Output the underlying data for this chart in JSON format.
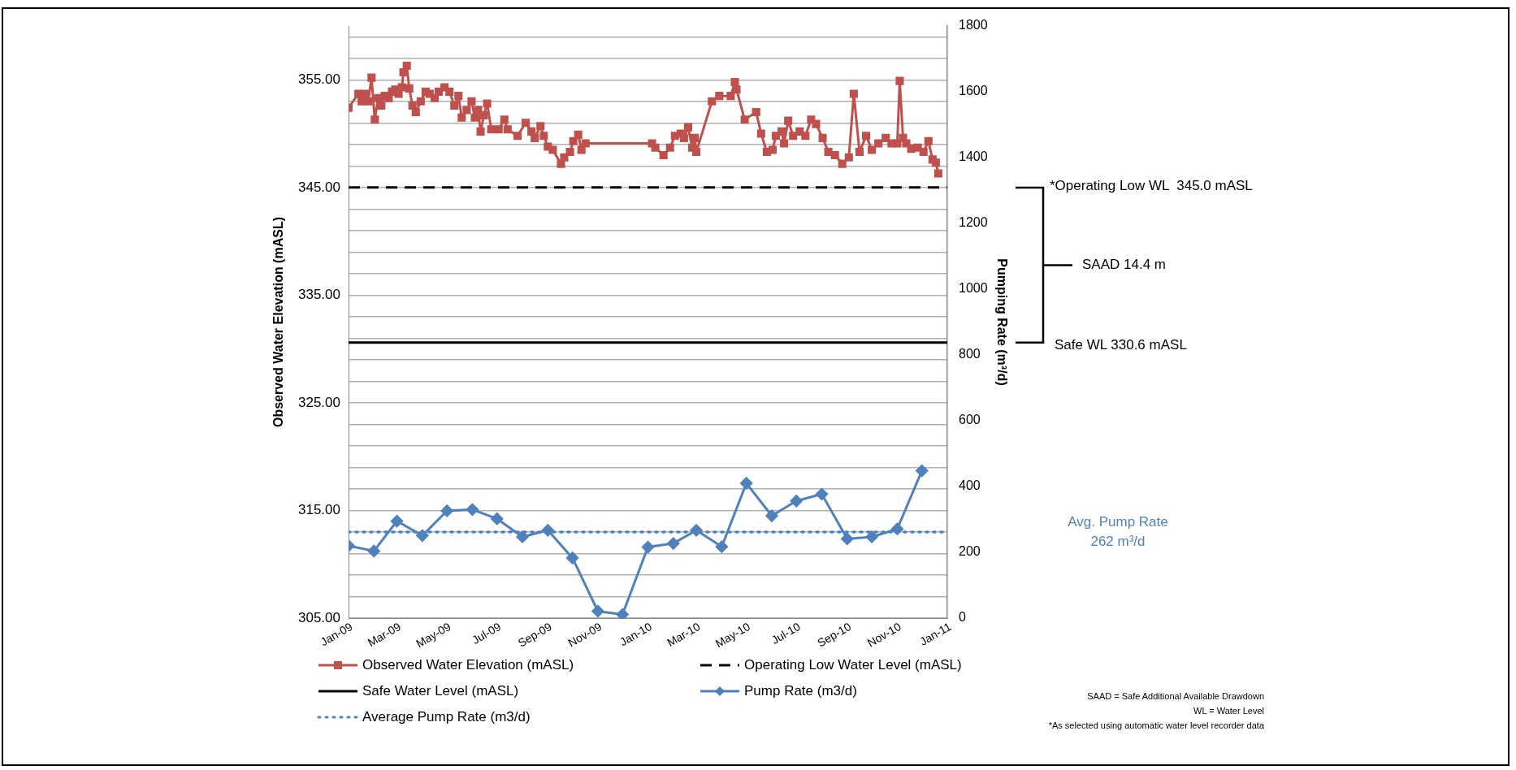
{
  "chart_data": {
    "type": "line",
    "xlabel": null,
    "ylabel": "Observed Water Elevation (mASL)",
    "y2label": "Pumping Rate (m³/d)",
    "xlim": [
      "2009-01",
      "2011-01"
    ],
    "xticks": [
      {
        "value": "2009-01",
        "label": "Jan-09"
      },
      {
        "value": "2009-03",
        "label": "Mar-09"
      },
      {
        "value": "2009-05",
        "label": "May-09"
      },
      {
        "value": "2009-07",
        "label": "Jul-09"
      },
      {
        "value": "2009-09",
        "label": "Sep-09"
      },
      {
        "value": "2009-11",
        "label": "Nov-09"
      },
      {
        "value": "2010-01",
        "label": "Jan-10"
      },
      {
        "value": "2010-03",
        "label": "Mar-10"
      },
      {
        "value": "2010-05",
        "label": "May-10"
      },
      {
        "value": "2010-07",
        "label": "Jul-10"
      },
      {
        "value": "2010-09",
        "label": "Sep-10"
      },
      {
        "value": "2010-11",
        "label": "Nov-10"
      },
      {
        "value": "2011-01",
        "label": "Jan-11"
      }
    ],
    "ylim": [
      305,
      360
    ],
    "yticks": [
      {
        "value": 305,
        "label": "305.00"
      },
      {
        "value": 307,
        "label": null
      },
      {
        "value": 309,
        "label": null
      },
      {
        "value": 311,
        "label": null
      },
      {
        "value": 313,
        "label": null
      },
      {
        "value": 315,
        "label": "315.00"
      },
      {
        "value": 317,
        "label": null
      },
      {
        "value": 319,
        "label": null
      },
      {
        "value": 321,
        "label": null
      },
      {
        "value": 323,
        "label": null
      },
      {
        "value": 325,
        "label": "325.00"
      },
      {
        "value": 327,
        "label": null
      },
      {
        "value": 329,
        "label": null
      },
      {
        "value": 331,
        "label": null
      },
      {
        "value": 333,
        "label": null
      },
      {
        "value": 335,
        "label": "335.00"
      },
      {
        "value": 337,
        "label": null
      },
      {
        "value": 339,
        "label": null
      },
      {
        "value": 341,
        "label": null
      },
      {
        "value": 343,
        "label": null
      },
      {
        "value": 345,
        "label": "345.00"
      },
      {
        "value": 347,
        "label": null
      },
      {
        "value": 349,
        "label": null
      },
      {
        "value": 351,
        "label": null
      },
      {
        "value": 353,
        "label": null
      },
      {
        "value": 355,
        "label": "355.00"
      },
      {
        "value": 357,
        "label": null
      },
      {
        "value": 359,
        "label": null
      }
    ],
    "y2lim": [
      0,
      1800
    ],
    "y2ticks": [
      0,
      200,
      400,
      600,
      800,
      1000,
      1200,
      1400,
      1600,
      1800
    ],
    "grid": true,
    "legend": "bottom",
    "series": [
      {
        "name": "Observed Water Elevation (mASL)",
        "color": "#c0504d",
        "marker": "square",
        "line_style": "solid",
        "x": [
          "2009-01-01",
          "2009-01-13",
          "2009-01-17",
          "2009-01-21",
          "2009-01-25",
          "2009-01-29",
          "2009-02-02",
          "2009-02-06",
          "2009-02-10",
          "2009-02-14",
          "2009-02-19",
          "2009-02-23",
          "2009-02-27",
          "2009-03-03",
          "2009-03-07",
          "2009-03-09",
          "2009-03-13",
          "2009-03-16",
          "2009-03-20",
          "2009-03-24",
          "2009-03-30",
          "2009-04-05",
          "2009-04-10",
          "2009-04-16",
          "2009-04-21",
          "2009-04-28",
          "2009-05-04",
          "2009-05-10",
          "2009-05-15",
          "2009-05-19",
          "2009-05-25",
          "2009-05-31",
          "2009-06-04",
          "2009-06-08",
          "2009-06-11",
          "2009-06-15",
          "2009-06-19",
          "2009-06-24",
          "2009-07-03",
          "2009-07-10",
          "2009-07-14",
          "2009-07-26",
          "2009-08-05",
          "2009-08-12",
          "2009-08-16",
          "2009-08-23",
          "2009-08-27",
          "2009-09-01",
          "2009-09-07",
          "2009-09-17",
          "2009-09-21",
          "2009-09-28",
          "2009-10-02",
          "2009-10-08",
          "2009-10-12",
          "2009-10-17",
          "2010-01-06",
          "2010-01-10",
          "2010-01-20",
          "2010-01-28",
          "2010-02-03",
          "2010-02-10",
          "2010-02-14",
          "2010-02-19",
          "2010-02-24",
          "2010-02-27",
          "2010-03-01",
          "2010-03-20",
          "2010-03-29",
          "2010-04-12",
          "2010-04-17",
          "2010-04-19",
          "2010-04-29",
          "2010-05-13",
          "2010-05-19",
          "2010-05-26",
          "2010-06-02",
          "2010-06-06",
          "2010-06-13",
          "2010-06-16",
          "2010-06-21",
          "2010-06-27",
          "2010-07-05",
          "2010-07-12",
          "2010-07-19",
          "2010-07-25",
          "2010-08-02",
          "2010-08-09",
          "2010-08-17",
          "2010-08-26",
          "2010-09-03",
          "2010-09-09",
          "2010-09-16",
          "2010-09-24",
          "2010-10-01",
          "2010-10-09",
          "2010-10-18",
          "2010-10-25",
          "2010-11-01",
          "2010-11-04",
          "2010-11-08",
          "2010-11-12",
          "2010-11-18",
          "2010-11-26",
          "2010-12-03",
          "2010-12-09",
          "2010-12-14",
          "2010-12-18",
          "2010-12-21"
        ],
        "values": [
          352.4,
          353.7,
          353.0,
          353.7,
          353.0,
          355.2,
          351.3,
          353.3,
          352.6,
          353.5,
          353.3,
          353.9,
          354.1,
          353.7,
          354.3,
          355.7,
          356.3,
          354.2,
          352.6,
          352.0,
          353.0,
          353.9,
          353.7,
          353.3,
          353.9,
          354.3,
          353.9,
          352.6,
          353.5,
          351.5,
          352.2,
          353.0,
          351.5,
          352.2,
          350.2,
          351.7,
          352.8,
          350.4,
          350.4,
          351.3,
          350.4,
          349.8,
          351.0,
          350.2,
          349.6,
          350.7,
          349.8,
          348.8,
          348.5,
          347.2,
          347.8,
          348.3,
          349.3,
          349.9,
          348.5,
          349.1,
          349.1,
          348.7,
          348.0,
          348.7,
          349.8,
          350.0,
          349.6,
          350.6,
          348.7,
          349.6,
          348.3,
          353.0,
          353.5,
          353.5,
          354.8,
          354.1,
          351.3,
          352.0,
          350.0,
          348.3,
          348.5,
          349.8,
          350.2,
          349.1,
          351.2,
          349.8,
          350.2,
          349.8,
          351.3,
          350.9,
          349.6,
          348.3,
          348.0,
          347.2,
          347.8,
          353.7,
          348.3,
          349.8,
          348.5,
          349.1,
          349.6,
          349.1,
          349.1,
          354.9,
          349.6,
          349.1,
          348.6,
          348.7,
          348.3,
          349.3,
          347.6,
          347.3,
          346.3
        ]
      },
      {
        "name": "Operating Low Water Level (mASL)",
        "color": "#000000",
        "marker": "none",
        "line_style": "dashed",
        "x": [
          "2009-01",
          "2011-01"
        ],
        "values": [
          345,
          345
        ]
      },
      {
        "name": "Safe Water Level (mASL)",
        "color": "#000000",
        "marker": "none",
        "line_style": "solid",
        "x": [
          "2009-01",
          "2011-01"
        ],
        "values": [
          330.6,
          330.6
        ]
      },
      {
        "name": "Pump Rate (m3/d)",
        "color": "#4f81bd",
        "marker": "diamond",
        "line_style": "solid",
        "axis": "y2",
        "x": [
          "2009-01",
          "2009-02",
          "2009-03",
          "2009-04",
          "2009-05",
          "2009-06",
          "2009-07",
          "2009-08",
          "2009-09",
          "2009-10",
          "2009-11",
          "2009-12",
          "2010-01",
          "2010-02",
          "2010-03",
          "2010-04",
          "2010-05",
          "2010-06",
          "2010-07",
          "2010-08",
          "2010-09",
          "2010-10",
          "2010-11",
          "2010-12"
        ],
        "values": [
          220,
          204,
          295,
          251,
          326,
          330,
          302,
          247,
          267,
          183,
          21,
          11,
          216,
          227,
          267,
          217,
          410,
          311,
          356,
          377,
          241,
          247,
          271,
          448
        ]
      },
      {
        "name": "Average Pump Rate (m3/d)",
        "color": "#4f81bd",
        "marker": "none",
        "line_style": "dotted",
        "axis": "y2",
        "x": [
          "2009-01",
          "2011-01"
        ],
        "values": [
          262,
          262
        ]
      }
    ],
    "annotations": [
      "*Operating Low WL  345.0 mASL",
      "SAAD 14.4 m",
      "Safe WL 330.6 mASL",
      "Avg. Pump Rate\n262 m³/d",
      "SAAD = Safe Additional Available Drawdown",
      "WL = Water Level",
      "*As selected using automatic water level recorder data"
    ]
  }
}
